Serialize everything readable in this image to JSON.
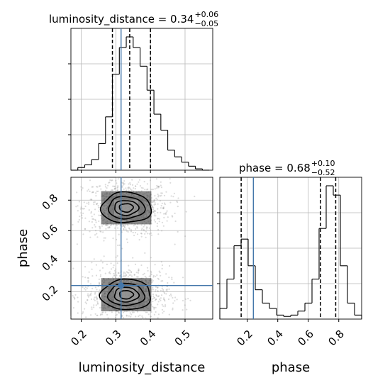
{
  "colors": {
    "truth": "#4477aa",
    "line": "#000000",
    "grid": "#b8b8b8"
  },
  "chart_data": {
    "type": "corner",
    "parameters": [
      "luminosity_distance",
      "phase"
    ],
    "truths": {
      "luminosity_distance": 0.315,
      "phase": 0.24
    },
    "titles": {
      "luminosity_distance": {
        "label": "luminosity_distance = 0.34",
        "plus": "+0.06",
        "minus": "−0.05"
      },
      "phase": {
        "label": "phase = 0.68",
        "plus": "+0.10",
        "minus": "−0.52"
      }
    },
    "axes": {
      "luminosity_distance": {
        "label": "luminosity_distance",
        "range": [
          0.17,
          0.58
        ],
        "ticks": [
          0.2,
          0.3,
          0.4,
          0.5
        ],
        "tick_labels": [
          "0.2",
          "0.3",
          "0.4",
          "0.5"
        ]
      },
      "phase": {
        "label": "phase",
        "range": [
          0.02,
          0.95
        ],
        "ticks": [
          0.2,
          0.4,
          0.6,
          0.8
        ],
        "tick_labels": [
          "0.2",
          "0.4",
          "0.6",
          "0.8"
        ]
      }
    },
    "hist_luminosity_distance": {
      "bin_edges": [
        0.17,
        0.19,
        0.21,
        0.23,
        0.25,
        0.27,
        0.29,
        0.31,
        0.33,
        0.35,
        0.37,
        0.39,
        0.41,
        0.43,
        0.45,
        0.47,
        0.49,
        0.51,
        0.53,
        0.55,
        0.57
      ],
      "counts": [
        0,
        0.02,
        0.04,
        0.08,
        0.2,
        0.4,
        0.72,
        0.92,
        1.0,
        0.92,
        0.78,
        0.6,
        0.42,
        0.3,
        0.15,
        0.1,
        0.06,
        0.03,
        0.01,
        0
      ]
    },
    "quantiles_luminosity_distance": [
      0.29,
      0.34,
      0.4
    ],
    "hist_phase": {
      "bin_edges": [
        0.02,
        0.0665,
        0.113,
        0.1595,
        0.206,
        0.2525,
        0.299,
        0.3455,
        0.392,
        0.4385,
        0.485,
        0.5315,
        0.578,
        0.6245,
        0.671,
        0.7175,
        0.764,
        0.8105,
        0.857,
        0.9035,
        0.95
      ],
      "counts": [
        0.08,
        0.3,
        0.55,
        0.6,
        0.4,
        0.22,
        0.12,
        0.08,
        0.03,
        0.02,
        0.03,
        0.06,
        0.12,
        0.3,
        0.68,
        1.0,
        0.93,
        0.4,
        0.12,
        0.03
      ]
    },
    "quantiles_phase": [
      0.16,
      0.68,
      0.78
    ],
    "contour_modes": [
      {
        "x": 0.33,
        "y": 0.75,
        "sx": 0.05,
        "sy": 0.075
      },
      {
        "x": 0.33,
        "y": 0.18,
        "sx": 0.05,
        "sy": 0.075
      }
    ],
    "contour_levels": [
      0.4,
      0.7,
      1.05,
      1.45
    ],
    "grid": true
  }
}
